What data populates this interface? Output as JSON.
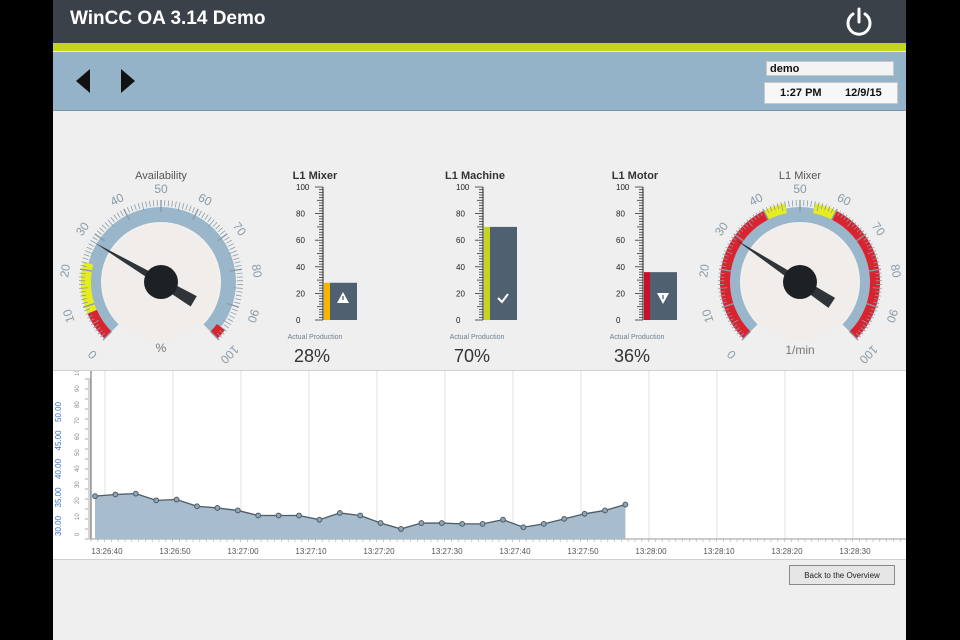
{
  "header": {
    "title": "WinCC OA 3.14 Demo",
    "power_icon": "power-icon"
  },
  "nav": {
    "prev_icon": "triangle-left-icon",
    "next_icon": "triangle-right-icon",
    "user": "demo",
    "time": "1:27 PM",
    "date": "12/9/15"
  },
  "gauges": [
    {
      "title": "Availability",
      "unit": "%",
      "value": 28,
      "ticks": [
        "0",
        "10",
        "20",
        "30",
        "40",
        "50",
        "60",
        "70",
        "80",
        "90",
        "100"
      ]
    },
    {
      "title": "L1 Mixer",
      "unit": "1/min",
      "value": 29,
      "ticks": [
        "0",
        "10",
        "20",
        "30",
        "40",
        "50",
        "60",
        "70",
        "80",
        "90",
        "100"
      ]
    }
  ],
  "bars": [
    {
      "title": "L1 Mixer",
      "caption": "Actual Production",
      "value": 28,
      "value_label": "28%",
      "status_color": "#f5b400",
      "status_icon": "warning-icon"
    },
    {
      "title": "L1 Machine",
      "caption": "Actual Production",
      "value": 70,
      "value_label": "70%",
      "status_color": "#c5d420",
      "status_icon": "checkmark-icon"
    },
    {
      "title": "L1 Motor",
      "caption": "Actual Production",
      "value": 36,
      "value_label": "36%",
      "status_color": "#c8102e",
      "status_icon": "alert-icon"
    }
  ],
  "bar_scale": [
    "100",
    "80",
    "60",
    "40",
    "20",
    "0"
  ],
  "chart_data": {
    "type": "area",
    "y_tick_labels": [
      "30.00",
      "35.00",
      "40.00",
      "45.00",
      "50.00"
    ],
    "ylim": [
      30,
      50
    ],
    "x_tick_labels": [
      "13:26:40",
      "13:26:50",
      "13:27:00",
      "13:27:10",
      "13:27:20",
      "13:27:30",
      "13:27:40",
      "13:27:50",
      "13:28:00",
      "13:28:10",
      "13:28:20",
      "13:28:30"
    ],
    "series": [
      {
        "values": [
          33.6,
          33.8,
          33.9,
          33.1,
          33.2,
          32.4,
          32.2,
          31.9,
          31.3,
          31.3,
          31.3,
          30.8,
          31.6,
          31.3,
          30.4,
          29.7,
          30.4,
          30.4,
          30.3,
          30.3,
          30.8,
          29.9,
          30.3,
          30.9,
          31.5,
          31.9,
          32.6
        ]
      }
    ],
    "colors": {
      "fill": "#a7bccd",
      "line": "#4e5b66"
    }
  },
  "footer": {
    "back_button": "Back to the Overview"
  }
}
